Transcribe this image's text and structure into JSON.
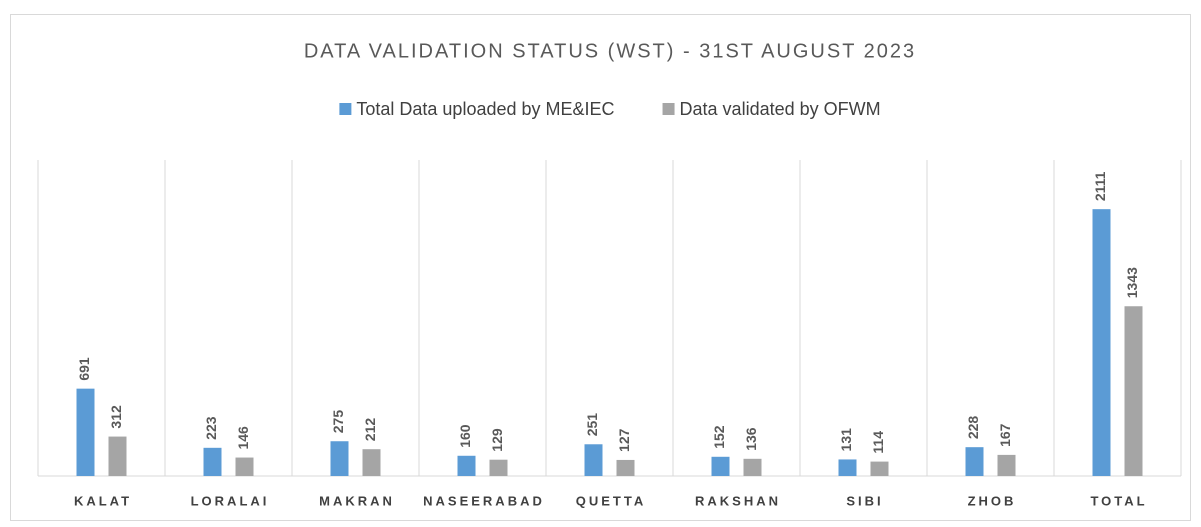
{
  "chart_data": {
    "type": "bar",
    "title": "DATA VALIDATION STATUS (WST) - 31ST AUGUST 2023",
    "categories": [
      "KALAT",
      "LORALAI",
      "MAKRAN",
      "NASEERABAD",
      "QUETTA",
      "RAKSHAN",
      "SIBI",
      "ZHOB",
      "TOTAL"
    ],
    "series": [
      {
        "name": "Total Data uploaded by ME&IEC",
        "color": "#5b9bd5",
        "values": [
          691,
          223,
          275,
          160,
          251,
          152,
          131,
          228,
          2111
        ]
      },
      {
        "name": "Data validated by OFWM",
        "color": "#a5a5a5",
        "values": [
          312,
          146,
          212,
          129,
          127,
          136,
          114,
          167,
          1343
        ]
      }
    ],
    "ylim": [
      0,
      2500
    ],
    "legend": "top"
  }
}
